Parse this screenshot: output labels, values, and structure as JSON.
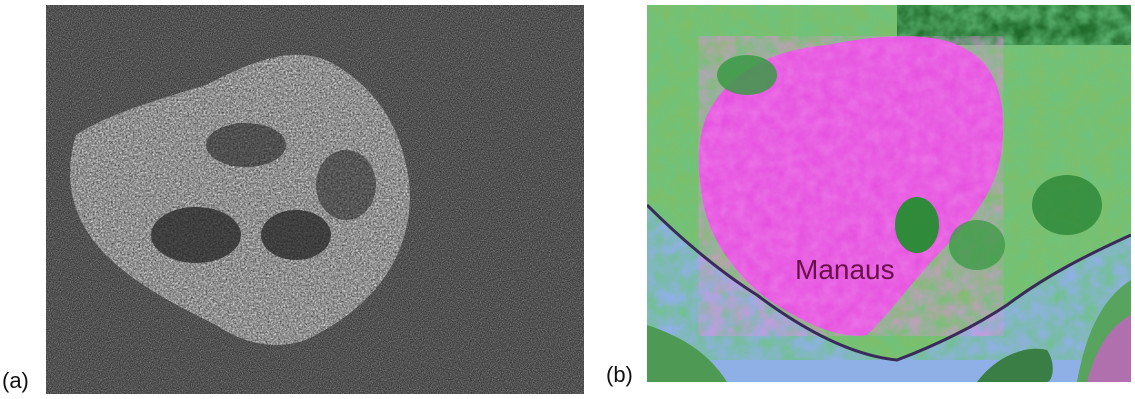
{
  "figure": {
    "panels": [
      {
        "id": "a",
        "label": "(a)"
      },
      {
        "id": "b",
        "label": "(b)",
        "map_label": "Manaus"
      }
    ]
  },
  "colors": {
    "sar_background": "#1c1c1c",
    "sar_bright": "#e8e8e8",
    "river": "#8fb0e6",
    "urban_magenta": "#e040d8",
    "vegetation_green": "#2f8a3a",
    "label_text": "#6a1048"
  }
}
